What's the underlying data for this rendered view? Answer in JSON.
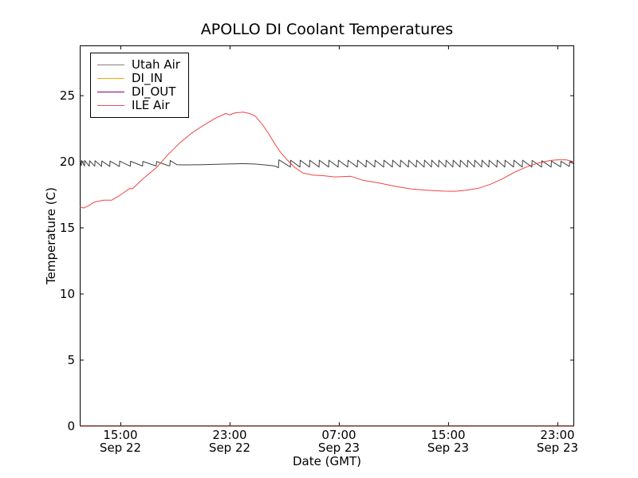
{
  "chart_data": {
    "type": "line",
    "title": "APOLLO DI Coolant Temperatures",
    "xlabel": "Date (GMT)",
    "ylabel": "Temperature (C)",
    "x_unit": "hours since Sep 22 ~12:00 GMT",
    "xlim": [
      0,
      36.2
    ],
    "ylim": [
      0,
      28.8
    ],
    "grid": false,
    "legend_position": "upper left",
    "x_ticks": [
      {
        "t": 3,
        "time": "15:00",
        "date": "Sep 22"
      },
      {
        "t": 11,
        "time": "23:00",
        "date": "Sep 22"
      },
      {
        "t": 19,
        "time": "07:00",
        "date": "Sep 23"
      },
      {
        "t": 27,
        "time": "15:00",
        "date": "Sep 23"
      },
      {
        "t": 35,
        "time": "23:00",
        "date": "Sep 23"
      }
    ],
    "y_ticks": [
      {
        "v": 0,
        "label": "0"
      },
      {
        "v": 5,
        "label": "5"
      },
      {
        "v": 10,
        "label": "10"
      },
      {
        "v": 15,
        "label": "15"
      },
      {
        "v": 20,
        "label": "20"
      },
      {
        "v": 25,
        "label": "25"
      }
    ],
    "series": [
      {
        "name": "Utah Air",
        "color": "#2b2b2b",
        "legend_color": "#808080",
        "opacity": 0.9,
        "points": [
          [
            0,
            20.05
          ],
          [
            0.12,
            19.7
          ],
          [
            0.13,
            20.1
          ],
          [
            0.35,
            19.68
          ],
          [
            0.36,
            20.1
          ],
          [
            0.7,
            19.66
          ],
          [
            0.72,
            20.08
          ],
          [
            1.1,
            19.66
          ],
          [
            1.12,
            20.08
          ],
          [
            1.6,
            19.65
          ],
          [
            1.62,
            20.06
          ],
          [
            2.2,
            19.65
          ],
          [
            2.22,
            20.05
          ],
          [
            2.9,
            19.65
          ],
          [
            2.92,
            20.05
          ],
          [
            3.7,
            19.66
          ],
          [
            3.72,
            20.04
          ],
          [
            4.6,
            19.67
          ],
          [
            4.62,
            20.03
          ],
          [
            5.6,
            19.68
          ],
          [
            5.62,
            20.02
          ],
          [
            6.5,
            19.7
          ],
          [
            6.6,
            19.7
          ],
          [
            6.62,
            20.1
          ],
          [
            7.1,
            19.78
          ],
          [
            7.6,
            19.76
          ],
          [
            9.0,
            19.78
          ],
          [
            10.5,
            19.82
          ],
          [
            12.0,
            19.86
          ],
          [
            12.9,
            19.82
          ],
          [
            13.7,
            19.75
          ],
          [
            14.3,
            19.68
          ],
          [
            14.55,
            19.55
          ],
          [
            14.58,
            20.15
          ],
          [
            15.42,
            19.6
          ],
          [
            15.44,
            20.12
          ],
          [
            16.12,
            19.6
          ],
          [
            16.14,
            20.12
          ],
          [
            16.82,
            19.6
          ],
          [
            16.84,
            20.12
          ],
          [
            17.52,
            19.6
          ],
          [
            17.54,
            20.12
          ],
          [
            18.22,
            19.6
          ],
          [
            18.24,
            20.12
          ],
          [
            18.92,
            19.6
          ],
          [
            18.94,
            20.12
          ],
          [
            19.62,
            19.6
          ],
          [
            19.64,
            20.12
          ],
          [
            20.32,
            19.6
          ],
          [
            20.34,
            20.12
          ],
          [
            20.96,
            19.6
          ],
          [
            20.98,
            20.12
          ],
          [
            21.6,
            19.6
          ],
          [
            21.62,
            20.12
          ],
          [
            22.25,
            19.6
          ],
          [
            22.27,
            20.12
          ],
          [
            22.89,
            19.6
          ],
          [
            22.91,
            20.12
          ],
          [
            23.47,
            19.6
          ],
          [
            23.49,
            20.12
          ],
          [
            24.06,
            19.6
          ],
          [
            24.08,
            20.12
          ],
          [
            24.64,
            19.6
          ],
          [
            24.66,
            20.12
          ],
          [
            25.22,
            19.6
          ],
          [
            25.24,
            20.12
          ],
          [
            25.75,
            19.6
          ],
          [
            25.77,
            20.12
          ],
          [
            26.27,
            19.6
          ],
          [
            26.29,
            20.12
          ],
          [
            26.8,
            19.6
          ],
          [
            26.82,
            20.12
          ],
          [
            27.32,
            19.6
          ],
          [
            27.34,
            20.12
          ],
          [
            27.85,
            19.6
          ],
          [
            27.87,
            20.12
          ],
          [
            28.38,
            19.6
          ],
          [
            28.4,
            20.12
          ],
          [
            28.9,
            19.6
          ],
          [
            28.92,
            20.12
          ],
          [
            29.43,
            19.6
          ],
          [
            29.45,
            20.12
          ],
          [
            29.95,
            19.6
          ],
          [
            29.97,
            20.12
          ],
          [
            30.54,
            19.6
          ],
          [
            30.56,
            20.12
          ],
          [
            31.12,
            19.6
          ],
          [
            31.14,
            20.12
          ],
          [
            31.76,
            19.6
          ],
          [
            31.78,
            20.12
          ],
          [
            32.4,
            19.6
          ],
          [
            32.42,
            20.12
          ],
          [
            33.1,
            19.6
          ],
          [
            33.12,
            20.1
          ],
          [
            33.81,
            19.6
          ],
          [
            33.83,
            20.08
          ],
          [
            34.51,
            19.6
          ],
          [
            34.53,
            20.06
          ],
          [
            35.21,
            19.62
          ],
          [
            35.23,
            20.04
          ],
          [
            35.85,
            19.65
          ],
          [
            35.87,
            20.0
          ],
          [
            36.2,
            19.82
          ]
        ]
      },
      {
        "name": "DI_IN",
        "color": "#ffa500",
        "legend_color": "#ffa500",
        "opacity": 1,
        "points": [
          [
            0,
            0
          ],
          [
            36.2,
            0
          ]
        ]
      },
      {
        "name": "DI_OUT",
        "color": "#800080",
        "legend_color": "#800080",
        "opacity": 0.55,
        "points": [
          [
            0,
            0
          ],
          [
            36.2,
            0
          ]
        ]
      },
      {
        "name": "ILE Air",
        "color": "#ee3b3b",
        "legend_color": "#f05050",
        "opacity": 0.95,
        "points": [
          [
            0,
            16.6
          ],
          [
            0.29,
            16.5
          ],
          [
            0.7,
            16.7
          ],
          [
            1.05,
            16.95
          ],
          [
            1.75,
            17.1
          ],
          [
            2.34,
            17.1
          ],
          [
            2.92,
            17.45
          ],
          [
            3.68,
            18.0
          ],
          [
            3.85,
            17.95
          ],
          [
            4.67,
            18.75
          ],
          [
            5.66,
            19.6
          ],
          [
            6.42,
            20.5
          ],
          [
            7.3,
            21.4
          ],
          [
            8.17,
            22.15
          ],
          [
            9.05,
            22.75
          ],
          [
            9.93,
            23.3
          ],
          [
            10.69,
            23.65
          ],
          [
            10.98,
            23.55
          ],
          [
            11.38,
            23.7
          ],
          [
            11.97,
            23.75
          ],
          [
            12.44,
            23.65
          ],
          [
            12.85,
            23.45
          ],
          [
            13.31,
            22.9
          ],
          [
            13.78,
            22.2
          ],
          [
            14.25,
            21.4
          ],
          [
            14.71,
            20.7
          ],
          [
            15.18,
            20.15
          ],
          [
            15.76,
            19.55
          ],
          [
            16.35,
            19.15
          ],
          [
            17.05,
            19.0
          ],
          [
            17.81,
            18.95
          ],
          [
            18.68,
            18.85
          ],
          [
            19.85,
            18.9
          ],
          [
            20.72,
            18.6
          ],
          [
            21.89,
            18.4
          ],
          [
            23.06,
            18.15
          ],
          [
            24.23,
            17.95
          ],
          [
            25.39,
            17.85
          ],
          [
            26.56,
            17.78
          ],
          [
            27.44,
            17.77
          ],
          [
            28.31,
            17.85
          ],
          [
            29.19,
            18.0
          ],
          [
            30.06,
            18.3
          ],
          [
            30.94,
            18.7
          ],
          [
            31.81,
            19.2
          ],
          [
            32.69,
            19.6
          ],
          [
            33.56,
            19.9
          ],
          [
            34.44,
            20.1
          ],
          [
            35.02,
            20.15
          ],
          [
            35.61,
            20.15
          ],
          [
            36.2,
            20.0
          ]
        ]
      }
    ]
  }
}
